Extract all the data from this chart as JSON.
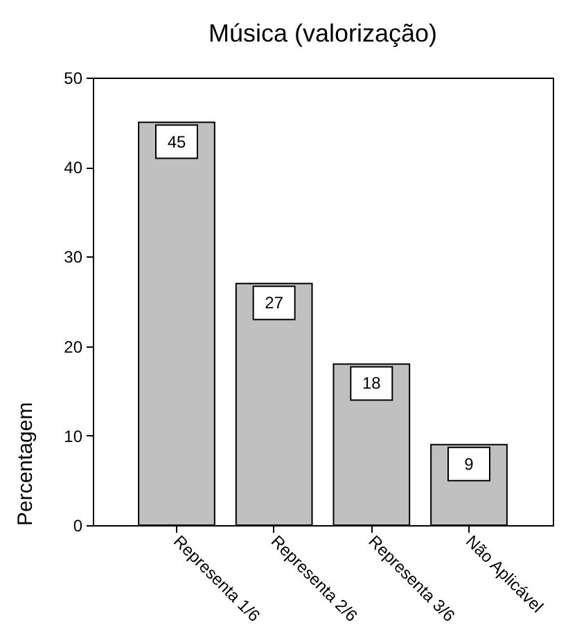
{
  "chart_data": {
    "type": "bar",
    "title": "Música (valorização)",
    "ylabel": "Percentagem",
    "categories": [
      "Representa 1/6",
      "Representa 2/6",
      "Representa 3/6",
      "Não Aplicável"
    ],
    "values": [
      45,
      27,
      18,
      9
    ],
    "color": "#c0c0c0",
    "ylim": [
      0,
      50
    ],
    "yticks": [
      0,
      10,
      20,
      30,
      40,
      50
    ],
    "grid": false,
    "data_labels": true
  }
}
